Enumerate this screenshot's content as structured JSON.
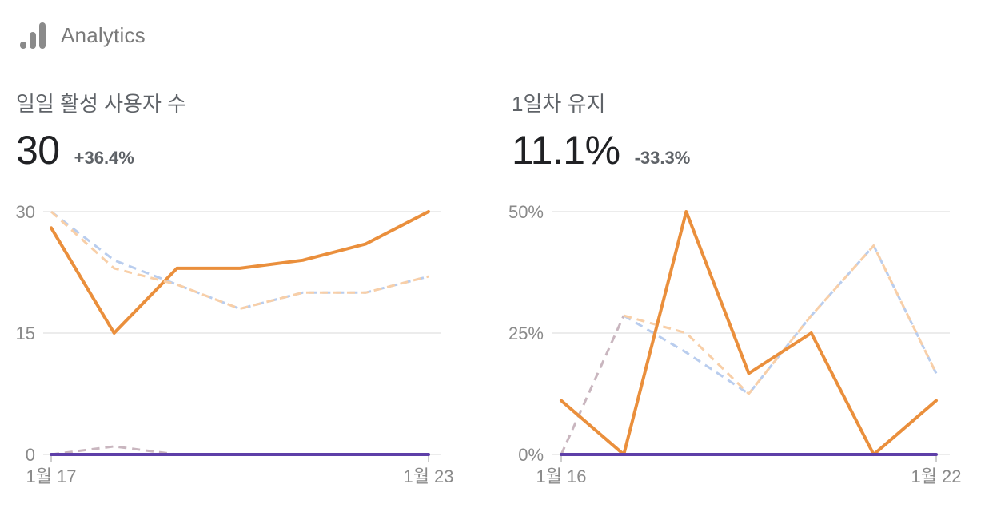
{
  "header": {
    "title": "Analytics",
    "icon": "bar-chart-icon"
  },
  "colors": {
    "current": "#ea8f3c",
    "previous_dashed_a": "#b9cdee",
    "previous_dashed_b": "#f8cfa8",
    "previous_dashed_c": "#c9b6bf",
    "baseline": "#5e3fa8",
    "grid": "#e6e6e6",
    "icon": "#8a8a8a"
  },
  "chart_data": [
    {
      "type": "line",
      "title": "일일 활성 사용자 수",
      "value": "30",
      "change": "+36.4%",
      "x_tick_labels": [
        "1월 17",
        "1월 23"
      ],
      "y_tick_labels": [
        "30",
        "15",
        "0"
      ],
      "ylim": [
        0,
        30
      ],
      "grid": true,
      "x": [
        0,
        1,
        2,
        3,
        4,
        5,
        6
      ],
      "series": [
        {
          "style": "solid",
          "color": "#ea8f3c",
          "values": [
            28,
            15,
            23,
            23,
            24,
            26,
            30
          ]
        },
        {
          "style": "dashed",
          "color": "#b9cdee",
          "values": [
            30,
            24,
            21,
            18,
            20,
            20,
            22
          ]
        },
        {
          "style": "dashed",
          "color": "#f8cfa8",
          "values": [
            30,
            23,
            21,
            18,
            20,
            20,
            22
          ]
        },
        {
          "style": "dashed",
          "color": "#c9b6bf",
          "values": [
            0,
            1,
            0,
            0,
            0,
            0,
            0
          ]
        },
        {
          "style": "solid",
          "color": "#5e3fa8",
          "values": [
            0,
            0,
            0,
            0,
            0,
            0,
            0
          ]
        }
      ]
    },
    {
      "type": "line",
      "title": "1일차 유지",
      "value": "11.1%",
      "change": "-33.3%",
      "x_tick_labels": [
        "1월 16",
        "1월 22"
      ],
      "y_tick_labels": [
        "50%",
        "25%",
        "0%"
      ],
      "ylim": [
        0,
        50
      ],
      "grid": true,
      "x": [
        0,
        1,
        2,
        3,
        4,
        5,
        6
      ],
      "series": [
        {
          "style": "dashed",
          "color": "#c9b6bf",
          "values": [
            0,
            28.6,
            null,
            null,
            null,
            null,
            null
          ]
        },
        {
          "style": "dashed",
          "color": "#b9cdee",
          "values": [
            null,
            28.6,
            21,
            12.5,
            28.6,
            43,
            16.7
          ]
        },
        {
          "style": "dashed",
          "color": "#f8cfa8",
          "values": [
            null,
            28.6,
            25,
            12.5,
            28.6,
            43,
            16.7
          ]
        },
        {
          "style": "solid",
          "color": "#ea8f3c",
          "values": [
            11.1,
            0,
            50,
            16.7,
            25,
            0,
            11.1
          ]
        },
        {
          "style": "solid",
          "color": "#5e3fa8",
          "values": [
            0,
            0,
            0,
            0,
            0,
            0,
            0
          ]
        }
      ]
    }
  ]
}
